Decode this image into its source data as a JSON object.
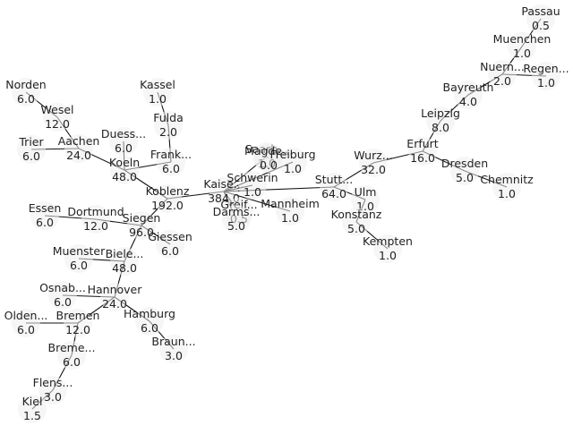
{
  "colors": {
    "edge": "#111111",
    "node_fill": "#eeeeee",
    "label": "#222222"
  },
  "nodes": [
    {
      "id": "passau",
      "name": "Passau",
      "value": "0.5"
    },
    {
      "id": "muenchen",
      "name": "Muenchen",
      "value": "1.0"
    },
    {
      "id": "nuern",
      "name": "Nuern...",
      "value": "2.0"
    },
    {
      "id": "regen",
      "name": "Regen...",
      "value": "1.0"
    },
    {
      "id": "bayreuth",
      "name": "Bayreuth",
      "value": "4.0"
    },
    {
      "id": "leipzig",
      "name": "Leipzig",
      "value": "8.0"
    },
    {
      "id": "erfurt",
      "name": "Erfurt",
      "value": "16.0"
    },
    {
      "id": "wurz",
      "name": "Wurz...",
      "value": "32.0"
    },
    {
      "id": "dresden",
      "name": "Dresden",
      "value": "5.0"
    },
    {
      "id": "chemnitz",
      "name": "Chemnitz",
      "value": "1.0"
    },
    {
      "id": "norden",
      "name": "Norden",
      "value": "6.0"
    },
    {
      "id": "wesel",
      "name": "Wesel",
      "value": "12.0"
    },
    {
      "id": "kassel",
      "name": "Kassel",
      "value": "1.0"
    },
    {
      "id": "fulda",
      "name": "Fulda",
      "value": "2.0"
    },
    {
      "id": "trier",
      "name": "Trier",
      "value": "6.0"
    },
    {
      "id": "aachen",
      "name": "Aachen",
      "value": "24.0"
    },
    {
      "id": "duess",
      "name": "Duess...",
      "value": "6.0"
    },
    {
      "id": "frank",
      "name": "Frank...",
      "value": "6.0"
    },
    {
      "id": "koeln",
      "name": "Koeln",
      "value": "48.0"
    },
    {
      "id": "koblenz",
      "name": "Koblenz",
      "value": "192.0"
    },
    {
      "id": "kaise",
      "name": "Kaise...",
      "value": "384.0"
    },
    {
      "id": "saarb",
      "name": "Saarb...",
      "value": "1.0"
    },
    {
      "id": "magde",
      "name": "Magde...",
      "value": "0.0"
    },
    {
      "id": "freiburg",
      "name": "Freiburg",
      "value": "1.0"
    },
    {
      "id": "schwerin",
      "name": "Schwerin",
      "value": "1.0"
    },
    {
      "id": "greif",
      "name": "Greif...",
      "value": "0.5"
    },
    {
      "id": "darms",
      "name": "Darms...",
      "value": "5.0"
    },
    {
      "id": "mannheim",
      "name": "Mannheim",
      "value": "1.0"
    },
    {
      "id": "stutt",
      "name": "Stutt...",
      "value": "64.0"
    },
    {
      "id": "ulm",
      "name": "Ulm",
      "value": "1.0"
    },
    {
      "id": "konstanz",
      "name": "Konstanz",
      "value": "5.0"
    },
    {
      "id": "kempten",
      "name": "Kempten",
      "value": "1.0"
    },
    {
      "id": "essen",
      "name": "Essen",
      "value": "6.0"
    },
    {
      "id": "dortmund",
      "name": "Dortmund",
      "value": "12.0"
    },
    {
      "id": "siegen",
      "name": "Siegen",
      "value": "96.0"
    },
    {
      "id": "giessen",
      "name": "Giessen",
      "value": "6.0"
    },
    {
      "id": "muenster",
      "name": "Muenster",
      "value": "6.0"
    },
    {
      "id": "biele",
      "name": "Biele...",
      "value": "48.0"
    },
    {
      "id": "osnab",
      "name": "Osnab...",
      "value": "6.0"
    },
    {
      "id": "hannover",
      "name": "Hannover",
      "value": "24.0"
    },
    {
      "id": "olden",
      "name": "Olden...",
      "value": "6.0"
    },
    {
      "id": "bremen",
      "name": "Bremen",
      "value": "12.0"
    },
    {
      "id": "hamburg",
      "name": "Hamburg",
      "value": "6.0"
    },
    {
      "id": "braun",
      "name": "Braun...",
      "value": "3.0"
    },
    {
      "id": "breme",
      "name": "Breme...",
      "value": "6.0"
    },
    {
      "id": "flens",
      "name": "Flens...",
      "value": "3.0"
    },
    {
      "id": "kiel",
      "name": "Kiel",
      "value": "1.5"
    }
  ],
  "edges": [
    [
      "passau",
      "muenchen"
    ],
    [
      "muenchen",
      "nuern"
    ],
    [
      "nuern",
      "regen"
    ],
    [
      "nuern",
      "bayreuth"
    ],
    [
      "bayreuth",
      "leipzig"
    ],
    [
      "leipzig",
      "erfurt"
    ],
    [
      "erfurt",
      "wurz"
    ],
    [
      "erfurt",
      "dresden"
    ],
    [
      "dresden",
      "chemnitz"
    ],
    [
      "wurz",
      "stutt"
    ],
    [
      "stutt",
      "kaise"
    ],
    [
      "stutt",
      "ulm"
    ],
    [
      "ulm",
      "konstanz"
    ],
    [
      "konstanz",
      "kempten"
    ],
    [
      "kaise",
      "saarb"
    ],
    [
      "kaise",
      "freiburg"
    ],
    [
      "kaise",
      "schwerin"
    ],
    [
      "kaise",
      "greif"
    ],
    [
      "kaise",
      "darms"
    ],
    [
      "kaise",
      "mannheim"
    ],
    [
      "saarb",
      "magde"
    ],
    [
      "kaise",
      "koblenz"
    ],
    [
      "koblenz",
      "koeln"
    ],
    [
      "koblenz",
      "siegen"
    ],
    [
      "koeln",
      "aachen"
    ],
    [
      "koeln",
      "frank"
    ],
    [
      "koeln",
      "duess"
    ],
    [
      "frank",
      "fulda"
    ],
    [
      "fulda",
      "kassel"
    ],
    [
      "aachen",
      "trier"
    ],
    [
      "aachen",
      "wesel"
    ],
    [
      "wesel",
      "norden"
    ],
    [
      "siegen",
      "dortmund"
    ],
    [
      "siegen",
      "giessen"
    ],
    [
      "siegen",
      "biele"
    ],
    [
      "dortmund",
      "essen"
    ],
    [
      "biele",
      "muenster"
    ],
    [
      "biele",
      "hannover"
    ],
    [
      "hannover",
      "osnab"
    ],
    [
      "hannover",
      "bremen"
    ],
    [
      "hannover",
      "hamburg"
    ],
    [
      "bremen",
      "olden"
    ],
    [
      "hamburg",
      "braun"
    ],
    [
      "bremen",
      "breme"
    ],
    [
      "breme",
      "flens"
    ],
    [
      "flens",
      "kiel"
    ]
  ]
}
